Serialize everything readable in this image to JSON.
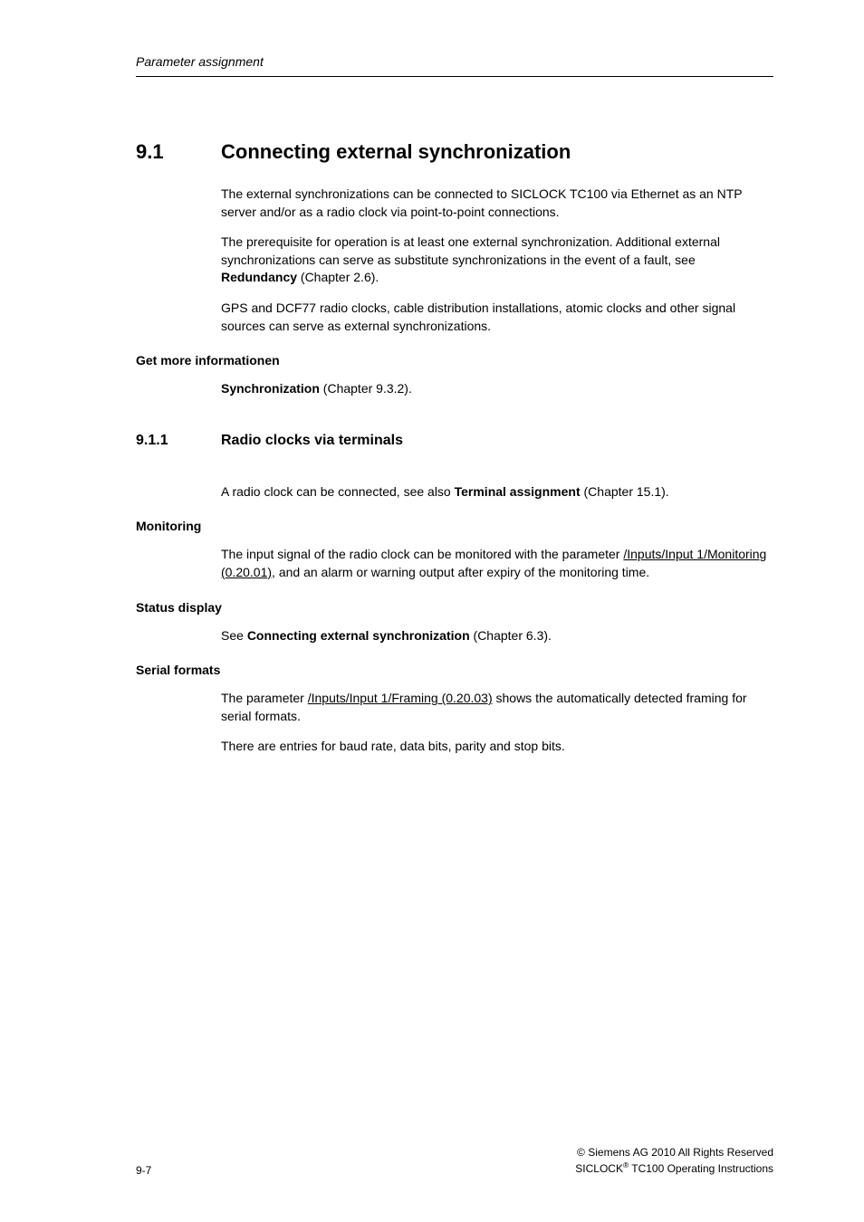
{
  "running_header": "Parameter assignment",
  "section": {
    "num": "9.1",
    "title": "Connecting external synchronization",
    "p1": "The external synchronizations can be connected to SICLOCK TC100 via Ethernet as an NTP server and/or as a radio clock via point-to-point connections.",
    "p2a": "The prerequisite for operation is at least one external synchronization. Additional external synchronizations can serve as substitute synchronizations in the event of a fault, see ",
    "p2b": "Redundancy",
    "p2c": " (Chapter 2.6).",
    "p3": "GPS and DCF77 radio clocks, cable distribution installations, atomic clocks and other signal sources can serve as external synchronizations."
  },
  "more_info": {
    "head": "Get more informationen",
    "link": "Synchronization",
    "tail": " (Chapter 9.3.2)."
  },
  "subsection": {
    "num": "9.1.1",
    "title": "Radio clocks via terminals",
    "p1a": "A radio clock can be connected, see also ",
    "p1b": "Terminal assignment",
    "p1c": " (Chapter 15.1)."
  },
  "monitoring": {
    "head": "Monitoring",
    "p_a": "The input signal of the radio clock can be monitored with the parameter ",
    "p_b": "/Inputs/Input 1/Monitoring (0.20.01)",
    "p_c": ", and an alarm or warning output after expiry of the monitoring time."
  },
  "status": {
    "head": "Status display",
    "p_a": "See ",
    "p_b": "Connecting external synchronization",
    "p_c": " (Chapter 6.3)."
  },
  "serial": {
    "head": "Serial formats",
    "p1_a": "The parameter ",
    "p1_b": "/Inputs/Input 1/Framing (0.20.03)",
    "p1_c": " shows the automatically detected framing for serial formats.",
    "p2": "There are entries for baud rate, data bits, parity and stop bits."
  },
  "footer": {
    "page": "9-7",
    "copyright": " Siemens AG 2010 All Rights Reserved",
    "prod_a": "SICLOCK",
    "prod_sup": "®",
    "prod_b": " TC100 Operating Instructions"
  }
}
